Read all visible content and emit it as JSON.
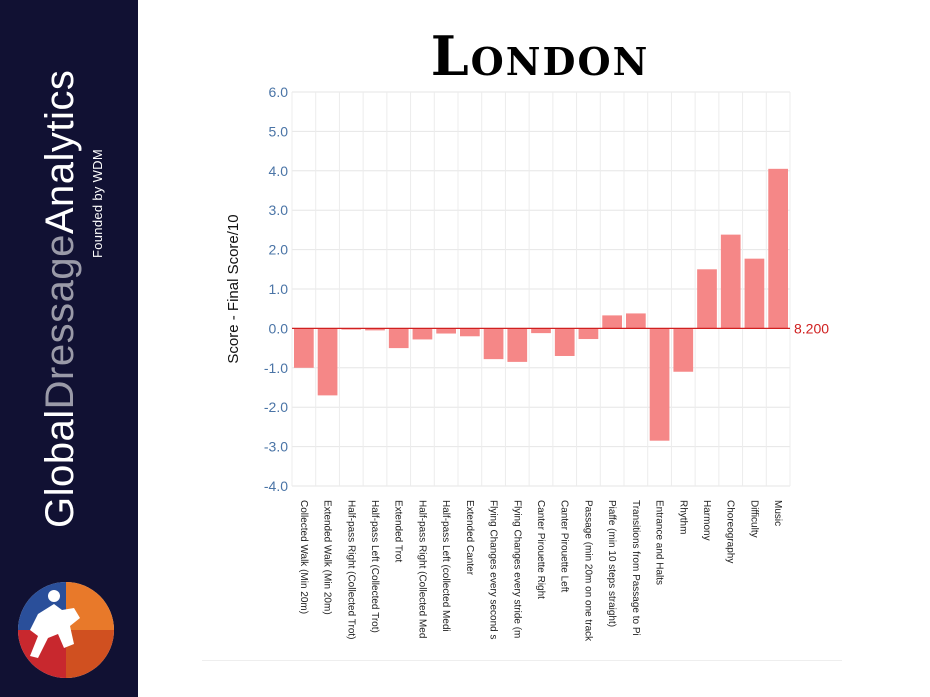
{
  "brand": {
    "part1": "Global",
    "part2": "Dressage",
    "part3": "Analytics",
    "tagline": "Founded by WDM"
  },
  "colors": {
    "sidebar": "#111133",
    "bar": "#f58787",
    "reference_line": "#d02020",
    "tick_label": "#4a74a6"
  },
  "chart_data": {
    "type": "bar",
    "title": "London",
    "ylabel": "Score - Final Score/10",
    "xlabel": "",
    "ylim": [
      -4.0,
      6.0
    ],
    "yticks": [
      "6.0",
      "5.0",
      "4.0",
      "3.0",
      "2.0",
      "1.0",
      "0.0",
      "-1.0",
      "-2.0",
      "-3.0",
      "-4.0"
    ],
    "grid": true,
    "reference_line": {
      "value": 0.0,
      "label": "8.200"
    },
    "categories": [
      "Collected Walk (Min 20m)",
      "Extended Walk (Min 20m)",
      "Half-pass Right (Collected Trot)",
      "Half-pass Left (Collected Trot)",
      "Extended Trot",
      "Half-pass Right (Collected Med",
      "Half-pass Left (collected Medi",
      "Extended Canter",
      "Flying Changes every second s",
      "Flying Changes every stride (m",
      "Canter Pirouette Right",
      "Canter Pirouette Left",
      "Passage (min 20m on one track",
      "Piaffe (min 10 steps straight)",
      "Transitions from Passage to Pi",
      "Entrance and Halts",
      "Rhythm",
      "Harmony",
      "Choreography",
      "Difficulty",
      "Music"
    ],
    "values": [
      -1.0,
      -1.7,
      -0.03,
      -0.05,
      -0.5,
      -0.28,
      -0.13,
      -0.2,
      -0.78,
      -0.85,
      -0.12,
      -0.7,
      -0.27,
      0.33,
      0.38,
      -2.85,
      -1.1,
      1.5,
      2.38,
      1.77,
      4.05
    ]
  }
}
